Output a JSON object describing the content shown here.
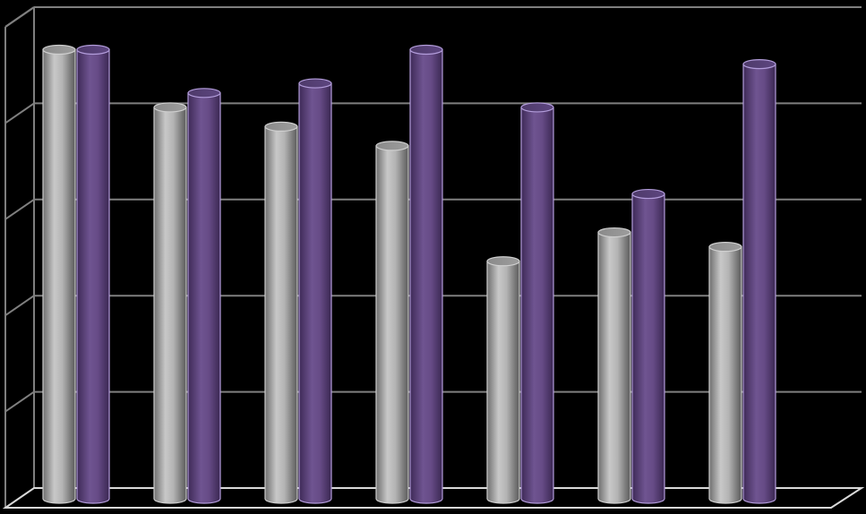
{
  "chart_data": {
    "type": "bar",
    "style": "3d-cylinder",
    "categories": [
      "",
      "",
      "",
      "",
      "",
      "",
      ""
    ],
    "series": [
      {
        "values": [
          4.8,
          4.2,
          4.0,
          3.8,
          2.6,
          2.9,
          2.75
        ],
        "color": "#b4b4b4"
      },
      {
        "values": [
          4.8,
          4.35,
          4.45,
          4.8,
          4.2,
          3.3,
          4.65
        ],
        "color": "#694f89"
      }
    ],
    "ylim": [
      0,
      5
    ],
    "y_ticks": [
      0,
      1,
      2,
      3,
      4,
      5
    ],
    "grid": true,
    "legend": "none",
    "title": "",
    "xlabel": "",
    "ylabel": "",
    "colors": {
      "background": "#000000",
      "grid": "#7f7f7f",
      "outline": "#d9d9d9",
      "series1_outline": "#cfcfcf",
      "series2_outline": "#b39ddb"
    }
  }
}
